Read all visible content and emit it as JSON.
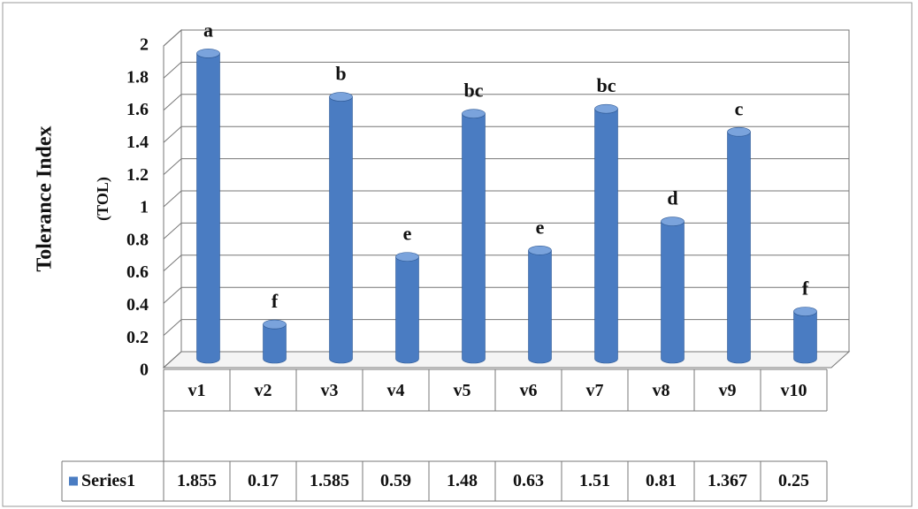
{
  "chart_data": {
    "type": "bar",
    "y_label": "Tolerance Index",
    "y_sublabel": "(TOL)",
    "categories": [
      "v1",
      "v2",
      "v3",
      "v4",
      "v5",
      "v6",
      "v7",
      "v8",
      "v9",
      "v10"
    ],
    "series": [
      {
        "name": "Series1",
        "color": "#4a7cc2",
        "values": [
          1.855,
          0.17,
          1.585,
          0.59,
          1.48,
          0.63,
          1.51,
          0.81,
          1.367,
          0.25
        ]
      }
    ],
    "annotations": [
      "a",
      "f",
      "b",
      "e",
      "bc",
      "e",
      "bc",
      "d",
      "c",
      "f"
    ],
    "ylim": [
      0,
      2
    ],
    "yticks": [
      0,
      0.2,
      0.4,
      0.6,
      0.8,
      1,
      1.2,
      1.4,
      1.6,
      1.8,
      2
    ],
    "grid": true
  }
}
